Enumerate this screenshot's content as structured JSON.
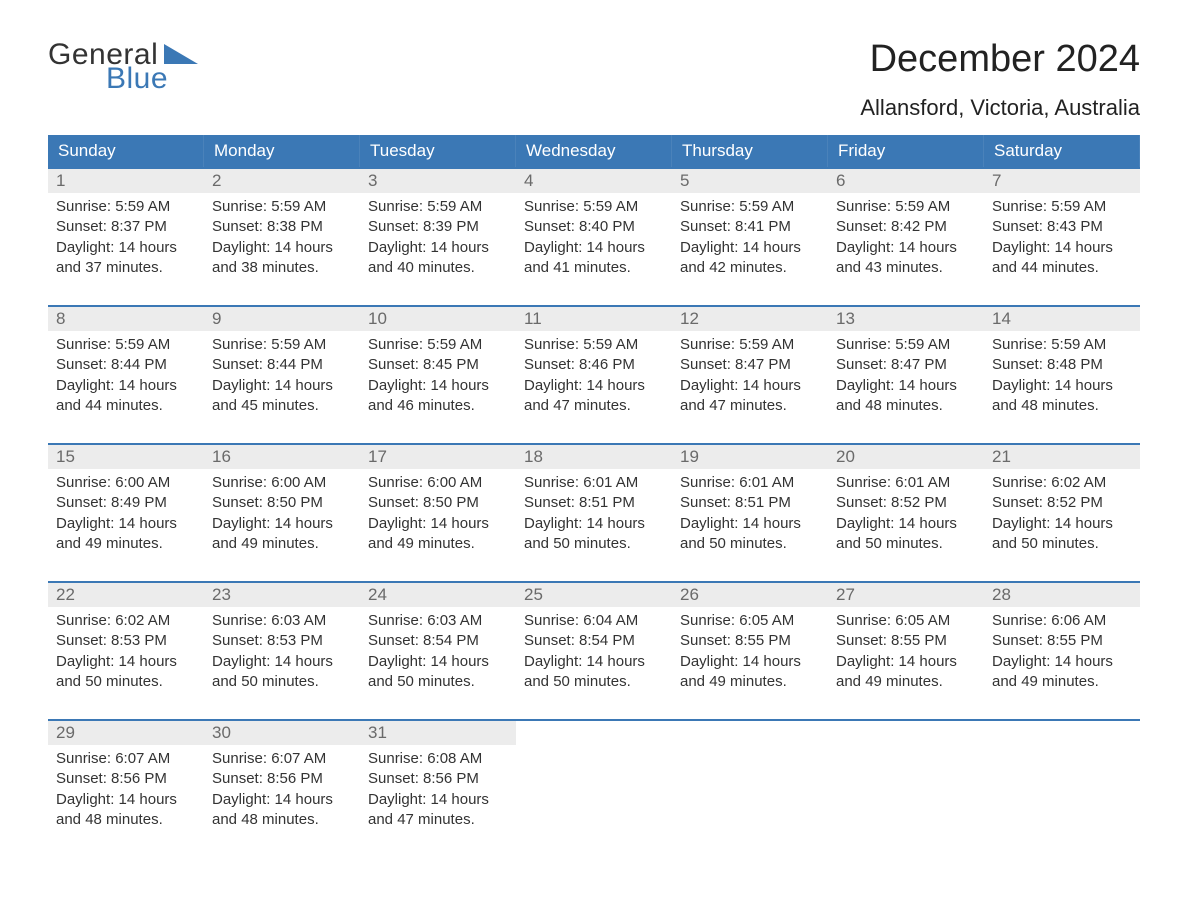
{
  "brand": {
    "word1": "General",
    "word2": "Blue",
    "text_color_general": "#333333",
    "text_color_blue": "#3b78b5",
    "triangle_color": "#3b78b5"
  },
  "header": {
    "title": "December 2024",
    "location": "Allansford, Victoria, Australia"
  },
  "styling": {
    "header_bg": "#3b78b5",
    "header_text": "#ffffff",
    "daynum_bg": "#ececec",
    "daynum_text": "#6a6a6a",
    "body_text": "#333333",
    "week_border": "#3b78b5",
    "page_bg": "#ffffff",
    "title_fontsize": 38,
    "location_fontsize": 22,
    "weekday_fontsize": 17,
    "daynum_fontsize": 17,
    "detail_fontsize": 15,
    "columns": 7
  },
  "weekdays": [
    "Sunday",
    "Monday",
    "Tuesday",
    "Wednesday",
    "Thursday",
    "Friday",
    "Saturday"
  ],
  "days": [
    {
      "n": "1",
      "sunrise": "5:59 AM",
      "sunset": "8:37 PM",
      "daylight": "14 hours and 37 minutes."
    },
    {
      "n": "2",
      "sunrise": "5:59 AM",
      "sunset": "8:38 PM",
      "daylight": "14 hours and 38 minutes."
    },
    {
      "n": "3",
      "sunrise": "5:59 AM",
      "sunset": "8:39 PM",
      "daylight": "14 hours and 40 minutes."
    },
    {
      "n": "4",
      "sunrise": "5:59 AM",
      "sunset": "8:40 PM",
      "daylight": "14 hours and 41 minutes."
    },
    {
      "n": "5",
      "sunrise": "5:59 AM",
      "sunset": "8:41 PM",
      "daylight": "14 hours and 42 minutes."
    },
    {
      "n": "6",
      "sunrise": "5:59 AM",
      "sunset": "8:42 PM",
      "daylight": "14 hours and 43 minutes."
    },
    {
      "n": "7",
      "sunrise": "5:59 AM",
      "sunset": "8:43 PM",
      "daylight": "14 hours and 44 minutes."
    },
    {
      "n": "8",
      "sunrise": "5:59 AM",
      "sunset": "8:44 PM",
      "daylight": "14 hours and 44 minutes."
    },
    {
      "n": "9",
      "sunrise": "5:59 AM",
      "sunset": "8:44 PM",
      "daylight": "14 hours and 45 minutes."
    },
    {
      "n": "10",
      "sunrise": "5:59 AM",
      "sunset": "8:45 PM",
      "daylight": "14 hours and 46 minutes."
    },
    {
      "n": "11",
      "sunrise": "5:59 AM",
      "sunset": "8:46 PM",
      "daylight": "14 hours and 47 minutes."
    },
    {
      "n": "12",
      "sunrise": "5:59 AM",
      "sunset": "8:47 PM",
      "daylight": "14 hours and 47 minutes."
    },
    {
      "n": "13",
      "sunrise": "5:59 AM",
      "sunset": "8:47 PM",
      "daylight": "14 hours and 48 minutes."
    },
    {
      "n": "14",
      "sunrise": "5:59 AM",
      "sunset": "8:48 PM",
      "daylight": "14 hours and 48 minutes."
    },
    {
      "n": "15",
      "sunrise": "6:00 AM",
      "sunset": "8:49 PM",
      "daylight": "14 hours and 49 minutes."
    },
    {
      "n": "16",
      "sunrise": "6:00 AM",
      "sunset": "8:50 PM",
      "daylight": "14 hours and 49 minutes."
    },
    {
      "n": "17",
      "sunrise": "6:00 AM",
      "sunset": "8:50 PM",
      "daylight": "14 hours and 49 minutes."
    },
    {
      "n": "18",
      "sunrise": "6:01 AM",
      "sunset": "8:51 PM",
      "daylight": "14 hours and 50 minutes."
    },
    {
      "n": "19",
      "sunrise": "6:01 AM",
      "sunset": "8:51 PM",
      "daylight": "14 hours and 50 minutes."
    },
    {
      "n": "20",
      "sunrise": "6:01 AM",
      "sunset": "8:52 PM",
      "daylight": "14 hours and 50 minutes."
    },
    {
      "n": "21",
      "sunrise": "6:02 AM",
      "sunset": "8:52 PM",
      "daylight": "14 hours and 50 minutes."
    },
    {
      "n": "22",
      "sunrise": "6:02 AM",
      "sunset": "8:53 PM",
      "daylight": "14 hours and 50 minutes."
    },
    {
      "n": "23",
      "sunrise": "6:03 AM",
      "sunset": "8:53 PM",
      "daylight": "14 hours and 50 minutes."
    },
    {
      "n": "24",
      "sunrise": "6:03 AM",
      "sunset": "8:54 PM",
      "daylight": "14 hours and 50 minutes."
    },
    {
      "n": "25",
      "sunrise": "6:04 AM",
      "sunset": "8:54 PM",
      "daylight": "14 hours and 50 minutes."
    },
    {
      "n": "26",
      "sunrise": "6:05 AM",
      "sunset": "8:55 PM",
      "daylight": "14 hours and 49 minutes."
    },
    {
      "n": "27",
      "sunrise": "6:05 AM",
      "sunset": "8:55 PM",
      "daylight": "14 hours and 49 minutes."
    },
    {
      "n": "28",
      "sunrise": "6:06 AM",
      "sunset": "8:55 PM",
      "daylight": "14 hours and 49 minutes."
    },
    {
      "n": "29",
      "sunrise": "6:07 AM",
      "sunset": "8:56 PM",
      "daylight": "14 hours and 48 minutes."
    },
    {
      "n": "30",
      "sunrise": "6:07 AM",
      "sunset": "8:56 PM",
      "daylight": "14 hours and 48 minutes."
    },
    {
      "n": "31",
      "sunrise": "6:08 AM",
      "sunset": "8:56 PM",
      "daylight": "14 hours and 47 minutes."
    }
  ],
  "labels": {
    "sunrise": "Sunrise: ",
    "sunset": "Sunset: ",
    "daylight": "Daylight: "
  }
}
